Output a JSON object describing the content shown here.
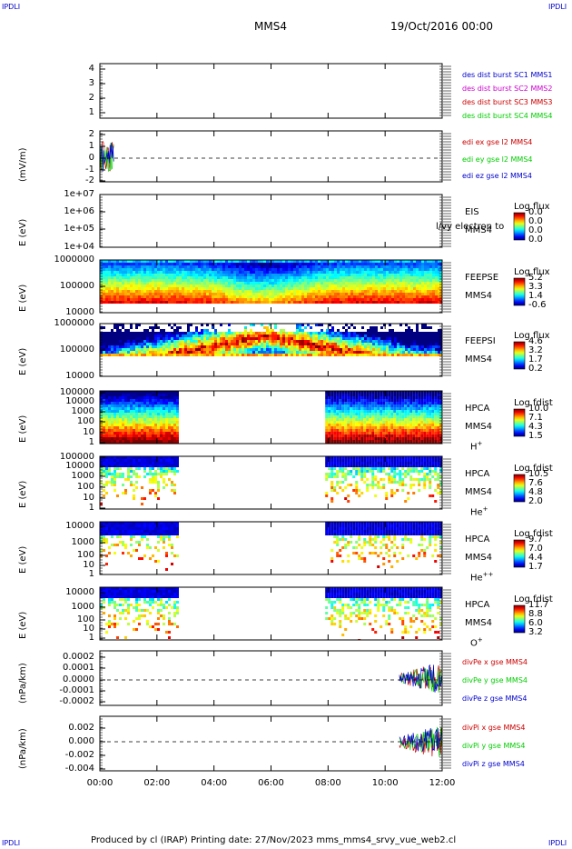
{
  "header": {
    "corner_label": "IPDLI",
    "spacecraft": "MMS4",
    "datetime": "19/Oct/2016 00:00"
  },
  "footer": {
    "text": "Produced by cl (IRAP)   Printing date: 27/Nov/2023   mms_mms4_srvy_vue_web2.cl"
  },
  "colors": {
    "blue": "#0000cc",
    "magenta": "#cc00cc",
    "red": "#cc0000",
    "green": "#00cc00"
  },
  "chart_data": {
    "type": "multi-panel time series",
    "x_tick_labels": [
      "00:00",
      "02:00",
      "04:00",
      "06:00",
      "08:00",
      "10:00",
      "12:00"
    ],
    "xlim_hours": [
      0,
      12
    ],
    "panels": [
      {
        "id": "des-dist",
        "type": "line",
        "y_tick_labels": [
          "4",
          "3",
          "2",
          "1"
        ],
        "ylabel": "",
        "legend": [
          {
            "text": "des dist burst SC1 MMS1",
            "color": "#0000cc"
          },
          {
            "text": "des dist burst SC2 MMS2",
            "color": "#cc00cc"
          },
          {
            "text": "des dist burst SC3 MMS3",
            "color": "#cc0000"
          },
          {
            "text": "des dist burst SC4 MMS4",
            "color": "#00cc00"
          }
        ]
      },
      {
        "id": "edi",
        "type": "line",
        "ylabel": "(mV/m)",
        "y_tick_labels": [
          "2",
          "1",
          "0",
          "-1",
          "-2"
        ],
        "ylim": [
          -2,
          2
        ],
        "data_window_hours": [
          0,
          0.5
        ],
        "legend": [
          {
            "text": "edi ex gse l2 MMS4",
            "color": "#cc0000"
          },
          {
            "text": "edi ey gse l2 MMS4",
            "color": "#00cc00"
          },
          {
            "text": "edi ez gse l2 MMS4",
            "color": "#0000cc"
          }
        ]
      },
      {
        "id": "eis",
        "type": "spectrogram",
        "ylabel": "E (eV)",
        "y_tick_labels": [
          "1e+07",
          "1e+06",
          "1e+05",
          "1e+04"
        ],
        "labels": [
          "EIS",
          "MMS4"
        ],
        "overlay_text": "l/vy electron to",
        "colorbar_title": "Log flux",
        "colorbar_values": [
          "0.0",
          "0.0",
          "0.0",
          "0.0"
        ]
      },
      {
        "id": "feepse",
        "type": "spectrogram",
        "ylabel": "E (eV)",
        "y_tick_labels": [
          "1000000",
          "100000",
          "10000"
        ],
        "labels": [
          "FEEPSE",
          "MMS4"
        ],
        "colorbar_title": "Log flux",
        "colorbar_values": [
          "5.2",
          "3.3",
          "1.4",
          "-0.6"
        ]
      },
      {
        "id": "feepsi",
        "type": "spectrogram",
        "ylabel": "E (eV)",
        "y_tick_labels": [
          "1000000",
          "100000",
          "10000"
        ],
        "labels": [
          "FEEPSI",
          "MMS4"
        ],
        "colorbar_title": "Log flux",
        "colorbar_values": [
          "4.6",
          "3.2",
          "1.7",
          "0.2"
        ]
      },
      {
        "id": "hpca-h",
        "type": "spectrogram",
        "ylabel": "E (eV)",
        "y_tick_labels": [
          "100000",
          "10000",
          "1000",
          "100",
          "10",
          "1"
        ],
        "labels": [
          "HPCA",
          "MMS4"
        ],
        "species": "H",
        "species_sup": "+",
        "colorbar_title": "Log fdist",
        "colorbar_values": [
          "10.0",
          "7.1",
          "4.3",
          "1.5"
        ],
        "data_windows_hours": [
          [
            0,
            2.75
          ],
          [
            7.9,
            12
          ]
        ]
      },
      {
        "id": "hpca-he",
        "type": "spectrogram",
        "ylabel": "E (eV)",
        "y_tick_labels": [
          "100000",
          "10000",
          "1000",
          "100",
          "10",
          "1"
        ],
        "labels": [
          "HPCA",
          "MMS4"
        ],
        "species": "He",
        "species_sup": "+",
        "colorbar_title": "Log fdist",
        "colorbar_values": [
          "10.5",
          "7.6",
          "4.8",
          "2.0"
        ],
        "data_windows_hours": [
          [
            0,
            2.75
          ],
          [
            7.9,
            12
          ]
        ]
      },
      {
        "id": "hpca-hepp",
        "type": "spectrogram",
        "ylabel": "E (eV)",
        "y_tick_labels": [
          "10000",
          "1000",
          "100",
          "10",
          "1"
        ],
        "labels": [
          "HPCA",
          "MMS4"
        ],
        "species": "He",
        "species_sup": "++",
        "colorbar_title": "Log fdist",
        "colorbar_values": [
          "9.7",
          "7.0",
          "4.4",
          "1.7"
        ],
        "data_windows_hours": [
          [
            0,
            2.75
          ],
          [
            7.9,
            12
          ]
        ]
      },
      {
        "id": "hpca-o",
        "type": "spectrogram",
        "ylabel": "E (eV)",
        "y_tick_labels": [
          "10000",
          "1000",
          "100",
          "10",
          "1"
        ],
        "labels": [
          "HPCA",
          "MMS4"
        ],
        "species": "O",
        "species_sup": "+",
        "colorbar_title": "Log fdist",
        "colorbar_values": [
          "11.7",
          "8.8",
          "6.0",
          "3.2"
        ],
        "data_windows_hours": [
          [
            0,
            2.75
          ],
          [
            7.9,
            12
          ]
        ]
      },
      {
        "id": "divpe",
        "type": "line",
        "ylabel": "(nPa/km)",
        "y_tick_labels": [
          "0.0002",
          "0.0001",
          "0.0000",
          "-0.0001",
          "-0.0002"
        ],
        "ylim": [
          -0.00025,
          0.00025
        ],
        "data_window_hours": [
          10.5,
          12
        ],
        "legend": [
          {
            "text": "divPe x gse MMS4",
            "color": "#cc0000"
          },
          {
            "text": "divPe y gse MMS4",
            "color": "#00cc00"
          },
          {
            "text": "divPe z gse MMS4",
            "color": "#0000cc"
          }
        ]
      },
      {
        "id": "divpi",
        "type": "line",
        "ylabel": "(nPa/km)",
        "y_tick_labels": [
          "0.002",
          "0.000",
          "-0.002",
          "-0.004"
        ],
        "ylim": [
          -0.0045,
          0.003
        ],
        "data_window_hours": [
          10.5,
          12
        ],
        "legend": [
          {
            "text": "divPi x gse MMS4",
            "color": "#cc0000"
          },
          {
            "text": "divPi y gse MMS4",
            "color": "#00cc00"
          },
          {
            "text": "divPi z gse MMS4",
            "color": "#0000cc"
          }
        ]
      }
    ]
  }
}
